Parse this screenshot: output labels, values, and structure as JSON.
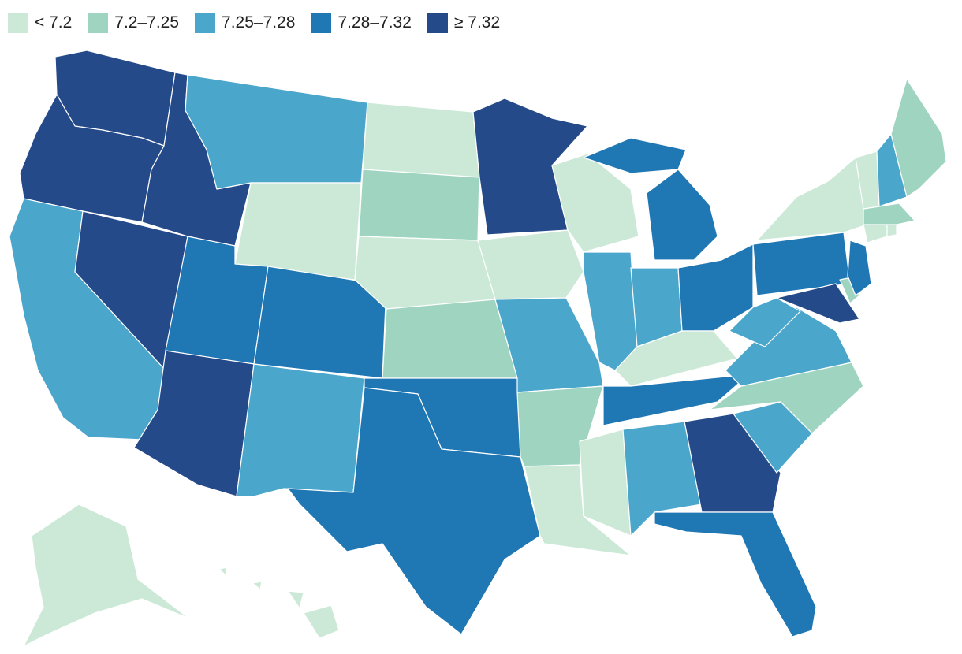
{
  "legend": [
    {
      "label": "< 7.2",
      "color": "#cce9d7"
    },
    {
      "label": "7.2–7.25",
      "color": "#9fd5c0"
    },
    {
      "label": "7.25–7.28",
      "color": "#4ba6cb"
    },
    {
      "label": "7.28–7.32",
      "color": "#1f77b4"
    },
    {
      "label": "≥ 7.32",
      "color": "#254a8a"
    }
  ],
  "states": {
    "WA": "≥ 7.32",
    "OR": "≥ 7.32",
    "ID": "≥ 7.32",
    "NV": "≥ 7.32",
    "AZ": "≥ 7.32",
    "MN": "≥ 7.32",
    "GA": "≥ 7.32",
    "MD": "≥ 7.32",
    "UT": "7.28–7.32",
    "CO": "7.28–7.32",
    "TX": "7.28–7.32",
    "OK": "7.28–7.32",
    "MI": "7.28–7.32",
    "OH": "7.28–7.32",
    "PA": "7.28–7.32",
    "NJ": "7.28–7.32",
    "TN": "7.28–7.32",
    "FL": "7.28–7.32",
    "CA": "7.25–7.28",
    "MT": "7.25–7.28",
    "NM": "7.25–7.28",
    "MO": "7.25–7.28",
    "IL": "7.25–7.28",
    "IN": "7.25–7.28",
    "WV": "7.25–7.28",
    "VA": "7.25–7.28",
    "SC": "7.25–7.28",
    "AL": "7.25–7.28",
    "NH": "7.25–7.28",
    "SD": "7.2–7.25",
    "KS": "7.2–7.25",
    "AR": "7.2–7.25",
    "NC": "7.2–7.25",
    "ME": "7.2–7.25",
    "MA": "7.2–7.25",
    "DE": "7.2–7.25",
    "ND": "< 7.2",
    "WY": "< 7.2",
    "NE": "< 7.2",
    "IA": "< 7.2",
    "WI": "< 7.2",
    "KY": "< 7.2",
    "MS": "< 7.2",
    "LA": "< 7.2",
    "NY": "< 7.2",
    "VT": "< 7.2",
    "CT": "< 7.2",
    "RI": "< 7.2",
    "AK": "< 7.2",
    "HI": "< 7.2"
  }
}
